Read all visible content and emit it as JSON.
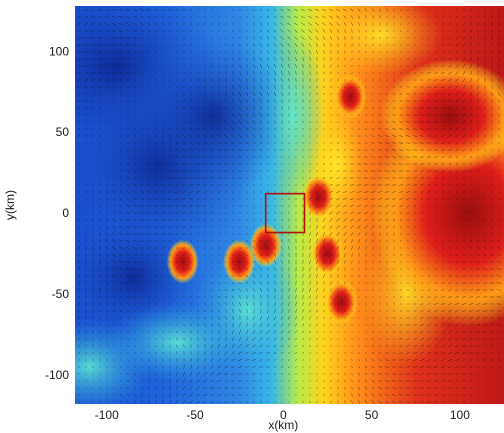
{
  "chart_data": {
    "type": "heatmap",
    "xlabel": "x(km)",
    "ylabel": "y(km)",
    "xlim": [
      -118,
      125
    ],
    "ylim": [
      -118,
      128
    ],
    "xticks": [
      -100,
      -50,
      0,
      50,
      100
    ],
    "yticks": [
      100,
      50,
      0,
      -50,
      -100
    ],
    "colormap": [
      "#0a1e8c",
      "#1a55d6",
      "#2aa6e6",
      "#55e0d0",
      "#c8f03c",
      "#ffe81e",
      "#ff8a1a",
      "#d8201a",
      "#8a0f0f"
    ],
    "overlay": "vector-field",
    "vector_color": "#111111",
    "highlight_box": {
      "x": [
        -10,
        12
      ],
      "y": [
        -12,
        12
      ],
      "color": "#b01010"
    },
    "hotspots": [
      {
        "x": -57,
        "y": -30
      },
      {
        "x": -25,
        "y": -30
      },
      {
        "x": -10,
        "y": -20
      },
      {
        "x": 25,
        "y": -25
      },
      {
        "x": 38,
        "y": 72
      },
      {
        "x": 20,
        "y": 10
      },
      {
        "x": 33,
        "y": -55
      }
    ]
  }
}
